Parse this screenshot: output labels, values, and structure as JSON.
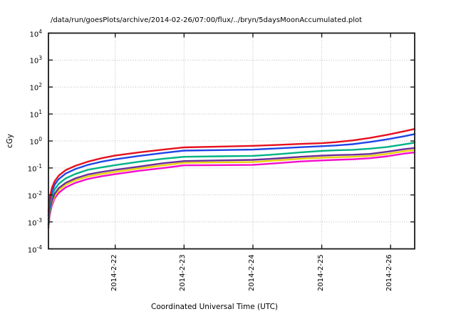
{
  "chart_data": {
    "type": "line",
    "title": "/data/run/goesPlots/archive/2014-02-26/07:00/flux/../bryn/5daysMoonAccumulated.plot",
    "xlabel": "Coordinated Universal Time (UTC)",
    "ylabel": "cGy",
    "y_scale": "log",
    "y_tick_exponents": [
      4,
      3,
      2,
      1,
      0,
      -1,
      -2,
      -3,
      -4
    ],
    "ylim_exponents": [
      -4,
      4
    ],
    "x_unit": "decimal day of February 2014, UTC",
    "xlim": [
      21.03,
      26.35
    ],
    "x_ticks": [
      {
        "value": 22,
        "label": "2014-2-22"
      },
      {
        "value": 23,
        "label": "2014-2-23"
      },
      {
        "value": 24,
        "label": "2014-2-24"
      },
      {
        "value": 25,
        "label": "2014-2-25"
      },
      {
        "value": 26,
        "label": "2014-2-26"
      }
    ],
    "grid": true,
    "legend": "none",
    "frame_color": "#1a1a1a",
    "grid_color": "#b8b8b8",
    "x": [
      21.03,
      21.05,
      21.08,
      21.12,
      21.18,
      21.28,
      21.42,
      21.6,
      21.8,
      22.0,
      22.35,
      22.7,
      23.0,
      23.5,
      24.0,
      24.35,
      24.7,
      25.0,
      25.2,
      25.45,
      25.7,
      25.95,
      26.2,
      26.35
    ],
    "series": [
      {
        "name": "magenta",
        "color": "#f50ccd",
        "values": [
          0.0006,
          0.0019,
          0.004,
          0.0075,
          0.012,
          0.019,
          0.028,
          0.039,
          0.049,
          0.059,
          0.079,
          0.1,
          0.125,
          0.127,
          0.13,
          0.15,
          0.175,
          0.19,
          0.2,
          0.21,
          0.23,
          0.27,
          0.34,
          0.375
        ]
      },
      {
        "name": "yellow",
        "color": "#e8d20a",
        "values": [
          0.0007,
          0.0023,
          0.005,
          0.009,
          0.015,
          0.024,
          0.035,
          0.048,
          0.06,
          0.072,
          0.096,
          0.125,
          0.155,
          0.16,
          0.165,
          0.19,
          0.22,
          0.24,
          0.25,
          0.26,
          0.28,
          0.33,
          0.42,
          0.46
        ]
      },
      {
        "name": "purple",
        "color": "#6b2d9b",
        "values": [
          0.0008,
          0.0027,
          0.006,
          0.011,
          0.018,
          0.028,
          0.041,
          0.057,
          0.071,
          0.085,
          0.113,
          0.15,
          0.18,
          0.19,
          0.2,
          0.225,
          0.26,
          0.285,
          0.3,
          0.31,
          0.33,
          0.4,
          0.5,
          0.55
        ]
      },
      {
        "name": "green",
        "color": "#00b386",
        "values": [
          0.0012,
          0.004,
          0.009,
          0.016,
          0.026,
          0.041,
          0.06,
          0.085,
          0.105,
          0.127,
          0.17,
          0.22,
          0.26,
          0.27,
          0.28,
          0.32,
          0.38,
          0.43,
          0.45,
          0.47,
          0.52,
          0.6,
          0.75,
          0.87
        ]
      },
      {
        "name": "blue",
        "color": "#1f45e6",
        "values": [
          0.0018,
          0.006,
          0.013,
          0.024,
          0.039,
          0.062,
          0.091,
          0.13,
          0.17,
          0.21,
          0.28,
          0.36,
          0.44,
          0.46,
          0.48,
          0.53,
          0.59,
          0.64,
          0.68,
          0.76,
          0.92,
          1.15,
          1.5,
          1.8
        ]
      },
      {
        "name": "red",
        "color": "#e6101e",
        "values": [
          0.0025,
          0.008,
          0.018,
          0.032,
          0.052,
          0.083,
          0.12,
          0.17,
          0.23,
          0.29,
          0.38,
          0.48,
          0.58,
          0.62,
          0.66,
          0.71,
          0.78,
          0.83,
          0.9,
          1.05,
          1.3,
          1.7,
          2.3,
          2.8
        ]
      }
    ]
  }
}
